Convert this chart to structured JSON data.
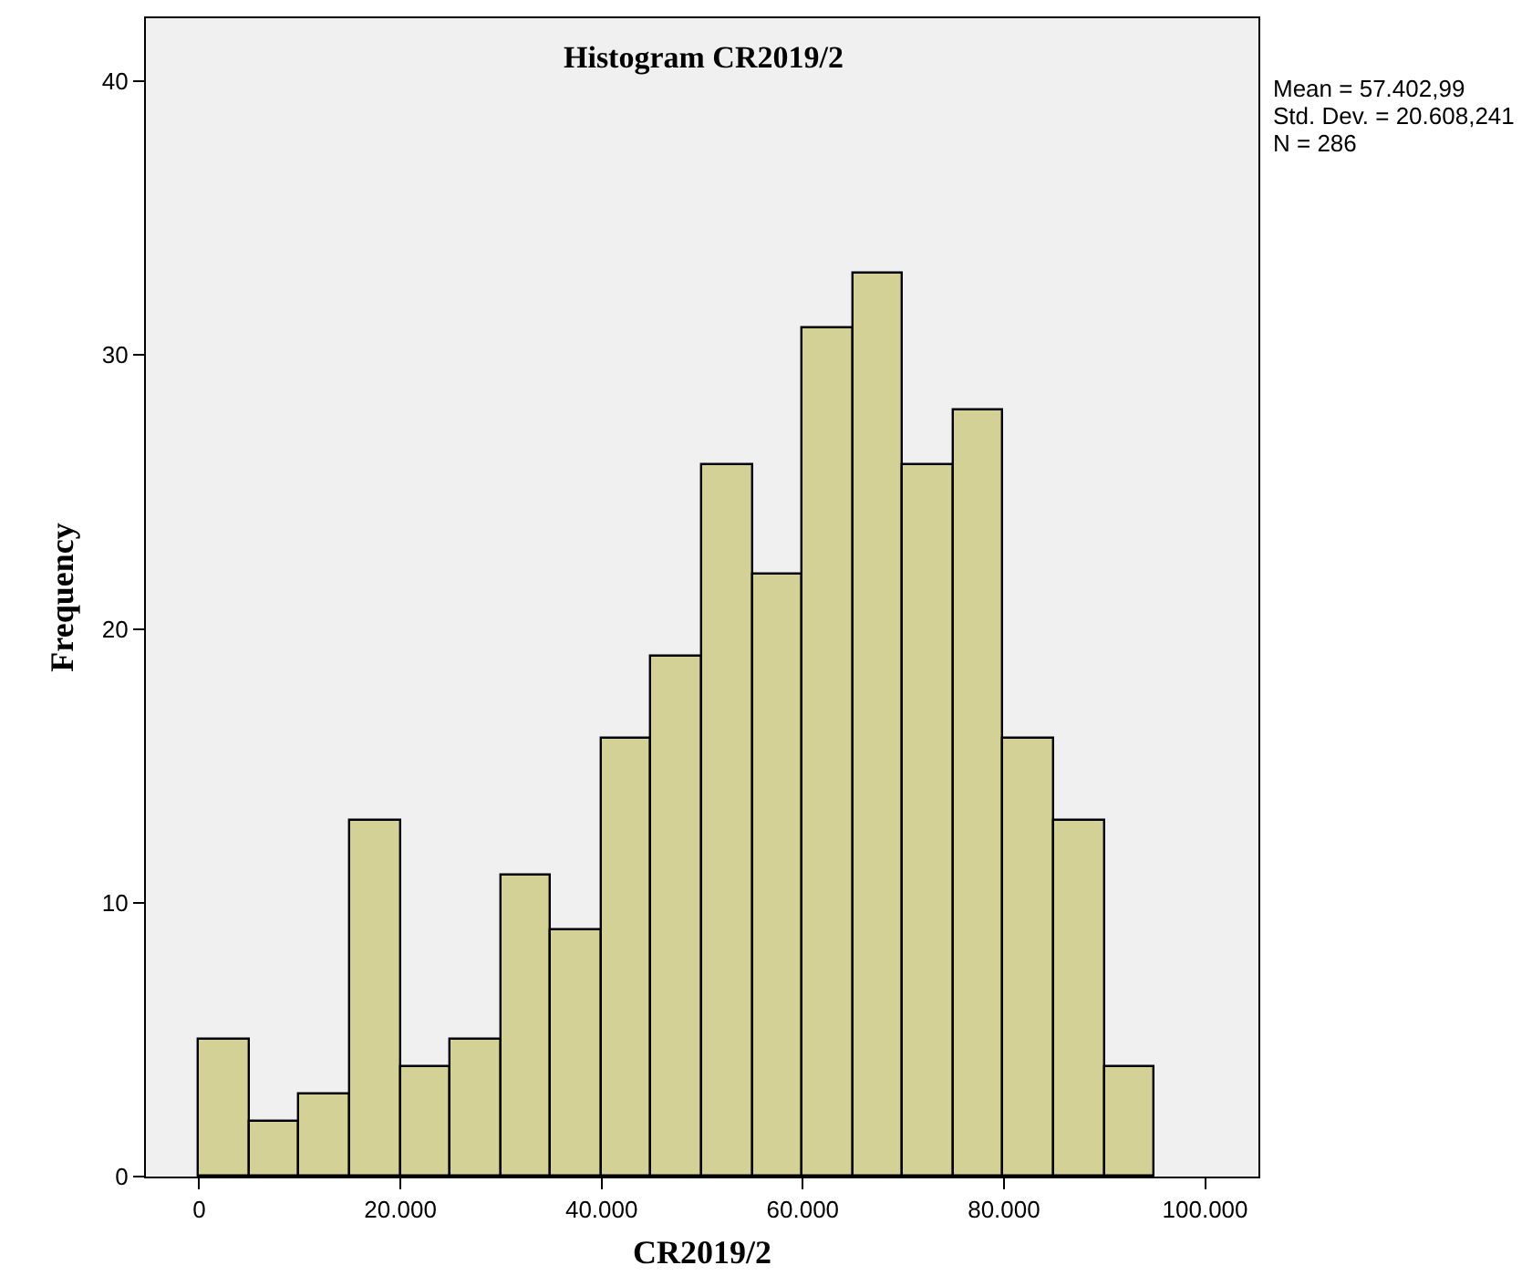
{
  "chart_data": {
    "type": "histogram",
    "title": "Histogram CR2019/2",
    "xlabel": "CR2019/2",
    "ylabel": "Frequency",
    "bins": [
      0,
      5000,
      10000,
      15000,
      20000,
      25000,
      30000,
      35000,
      40000,
      45000,
      50000,
      55000,
      60000,
      65000,
      70000,
      75000,
      80000,
      85000,
      90000,
      95000
    ],
    "values": [
      5,
      2,
      3,
      13,
      4,
      5,
      11,
      9,
      16,
      19,
      26,
      22,
      31,
      33,
      26,
      28,
      16,
      13,
      4
    ],
    "color": "#d4d196",
    "xlim": [
      -5300,
      105300
    ],
    "ylim": [
      0,
      42.3
    ],
    "xticks": [
      0,
      {
        "value": 20000,
        "label": "20.000"
      },
      {
        "value": 40000,
        "label": "40.000"
      },
      {
        "value": 60000,
        "label": "60.000"
      },
      {
        "value": 80000,
        "label": "80.000"
      },
      {
        "value": 100000,
        "label": "100.000"
      }
    ],
    "yticks": [
      0,
      10,
      20,
      30,
      40
    ],
    "annotations": [
      "Mean = 57.402,99",
      "Std. Dev. = 20.608,241",
      "N = 286"
    ]
  }
}
